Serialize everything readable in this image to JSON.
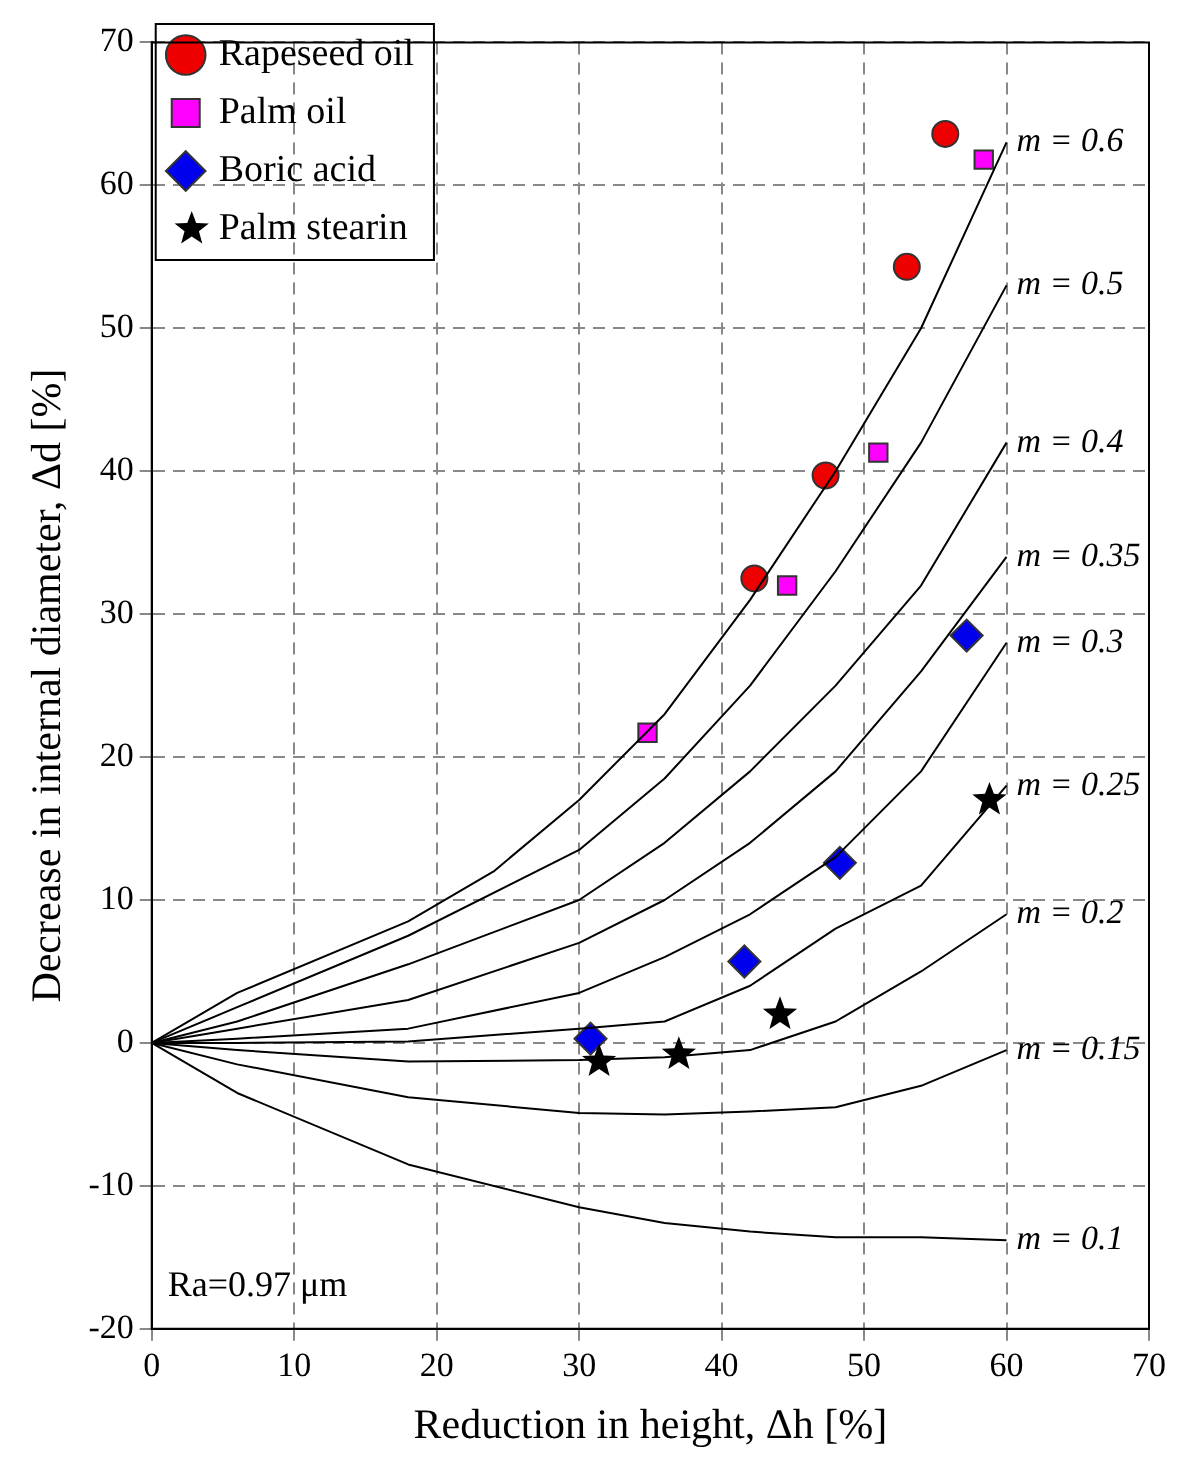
{
  "chart_data": {
    "type": "scatter",
    "xlabel": "Reduction in height, Δh [%]",
    "ylabel": "Decrease in internal diameter, Δd [%]",
    "xlim": [
      0,
      70
    ],
    "xticks": [
      0,
      10,
      20,
      30,
      40,
      50,
      60,
      70
    ],
    "ylim": [
      -20,
      70
    ],
    "yticks": [
      -20,
      -10,
      0,
      10,
      20,
      30,
      40,
      50,
      60,
      70
    ],
    "grid": true,
    "legend": "top left",
    "annotations": [
      "Ra=0.97 μm"
    ],
    "series": [
      {
        "name": "m = 0.6",
        "type": "line",
        "marker": "none",
        "color": "#000000",
        "x": [
          0,
          6,
          18,
          24,
          30,
          36,
          42,
          48,
          54,
          60
        ],
        "values": [
          0,
          3.5,
          8.5,
          12,
          17,
          23,
          31,
          40,
          50,
          63
        ]
      },
      {
        "name": "m = 0.5",
        "type": "line",
        "marker": "none",
        "color": "#000000",
        "x": [
          0,
          6,
          18,
          30,
          36,
          42,
          48,
          54,
          60
        ],
        "values": [
          0,
          2.5,
          7.5,
          13.5,
          18.5,
          25,
          33,
          42,
          53
        ]
      },
      {
        "name": "m = 0.4",
        "type": "line",
        "marker": "none",
        "color": "#000000",
        "x": [
          0,
          6,
          18,
          30,
          36,
          42,
          48,
          54,
          60
        ],
        "values": [
          0,
          1.5,
          5.5,
          10,
          14,
          19,
          25,
          32,
          42
        ]
      },
      {
        "name": "m = 0.35",
        "type": "line",
        "marker": "none",
        "color": "#000000",
        "x": [
          0,
          6,
          18,
          30,
          36,
          42,
          48,
          54,
          60
        ],
        "values": [
          0,
          1,
          3,
          7,
          10,
          14,
          19,
          26,
          34
        ]
      },
      {
        "name": "m = 0.3",
        "type": "line",
        "marker": "none",
        "color": "#000000",
        "x": [
          0,
          6,
          18,
          30,
          36,
          42,
          48,
          54,
          60
        ],
        "values": [
          0,
          0.3,
          1,
          3.5,
          6,
          9,
          13,
          19,
          28
        ]
      },
      {
        "name": "m = 0.25",
        "type": "line",
        "marker": "none",
        "color": "#000000",
        "x": [
          0,
          6,
          18,
          30,
          36,
          42,
          48,
          54,
          60
        ],
        "values": [
          0,
          0,
          0.1,
          1,
          1.5,
          4,
          8,
          11,
          18
        ]
      },
      {
        "name": "m = 0.2",
        "type": "line",
        "marker": "none",
        "color": "#000000",
        "x": [
          0,
          6,
          18,
          30,
          36,
          42,
          48,
          54,
          60
        ],
        "values": [
          0,
          -0.5,
          -1.3,
          -1.2,
          -1,
          -0.5,
          1.5,
          5,
          9
        ]
      },
      {
        "name": "m = 0.15",
        "type": "line",
        "marker": "none",
        "color": "#000000",
        "x": [
          0,
          6,
          18,
          30,
          36,
          42,
          48,
          54,
          60
        ],
        "values": [
          0,
          -1.5,
          -3.8,
          -4.9,
          -5,
          -4.8,
          -4.5,
          -3,
          -0.5
        ]
      },
      {
        "name": "m = 0.1",
        "type": "line",
        "marker": "none",
        "color": "#000000",
        "x": [
          0,
          6,
          18,
          30,
          36,
          42,
          48,
          54,
          60
        ],
        "values": [
          0,
          -3.5,
          -8.5,
          -11.5,
          -12.6,
          -13.2,
          -13.6,
          -13.6,
          -13.8
        ]
      },
      {
        "name": "Rapeseed oil",
        "marker": "circle",
        "color": "#ee0000",
        "x": [
          42.3,
          47.3,
          53,
          55.7
        ],
        "values": [
          32.5,
          39.7,
          54.3,
          63.6
        ]
      },
      {
        "name": "Palm oil",
        "marker": "square",
        "color": "#ff00ff",
        "x": [
          34.8,
          44.6,
          51,
          58.4
        ],
        "values": [
          21.7,
          32,
          41.3,
          61.8
        ]
      },
      {
        "name": "Boric acid",
        "marker": "diamond",
        "color": "#0000ee",
        "x": [
          30.8,
          41.6,
          48.3,
          57.2
        ],
        "values": [
          0.3,
          5.7,
          12.6,
          28.5
        ]
      },
      {
        "name": "Palm stearin",
        "marker": "star",
        "color": "#000000",
        "x": [
          31.4,
          37,
          44.1,
          58.8
        ],
        "values": [
          -1.3,
          -0.8,
          2,
          17
        ]
      }
    ]
  }
}
